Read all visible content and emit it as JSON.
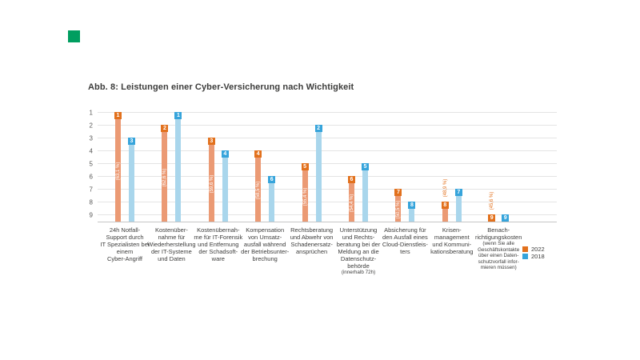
{
  "figure": {
    "background": "#ffffff",
    "logo_color": "#009E60"
  },
  "chart_data": {
    "type": "bar",
    "title": "Abb. 8: Leistungen einer Cyber-Versicherung nach Wichtigkeit",
    "xlabel": "",
    "ylabel": "",
    "y_ticks": [
      1,
      2,
      3,
      4,
      5,
      6,
      7,
      8,
      9
    ],
    "y_axis": {
      "min": 1,
      "max": 9,
      "inverted": true
    },
    "grid": true,
    "legend": {
      "position": "bottom-right",
      "items": [
        {
          "label": "2022",
          "color": "#E2711D"
        },
        {
          "label": "2018",
          "color": "#36A4DB"
        }
      ]
    },
    "categories": [
      {
        "label_lines": "24h Notfall-\nSupport durch\nIT Spezialisten bei\neinem\nCyber-Angriff",
        "note_lines": ""
      },
      {
        "label_lines": "Kostenüber-\nnahme für\nWiederherstellung\nder IT-Systeme\nund Daten",
        "note_lines": ""
      },
      {
        "label_lines": "Kostenübernah-\nme für IT-Forensik\nund Entfernung\nder Schadsoft-\nware",
        "note_lines": ""
      },
      {
        "label_lines": "Kompensation\nvon Umsatz-\nausfall während\nder Betriebsunter-\nbrechung",
        "note_lines": ""
      },
      {
        "label_lines": "Rechtsberatung\nund Abwehr von\nSchadenersatz-\nansprüchen",
        "note_lines": ""
      },
      {
        "label_lines": "Unterstützung\nund Rechts-\nberatung bei der\nMeldung an die\nDatenschutz-\nbehörde",
        "note_lines": "(innerhalb 72h)"
      },
      {
        "label_lines": "Absicherung für\nden Ausfall eines\nCloud-Dienstleis-\nters",
        "note_lines": ""
      },
      {
        "label_lines": "Krisen-\nmanagement\nund Kommuni-\nkationsberatung",
        "note_lines": ""
      },
      {
        "label_lines": "Benach-\nrichtigungskosten",
        "note_lines": "(wenn Sie alle\nGeschäftskontakte\nüber einen Daten-\nschutzvorfall infor-\nmieren müssen)"
      }
    ],
    "series": [
      {
        "name": "2022",
        "bar_color": "#EB9A74",
        "badge_color": "#E2711D",
        "ranks": [
          1,
          2,
          3,
          4,
          5,
          6,
          7,
          8,
          9
        ],
        "percent_labels": [
          "(63,1 %)",
          "(62,6 %)",
          "(59,6 %)",
          "(58,5 %)",
          "(55,4 %)",
          "(54,4 %)",
          "(50,5 %)",
          "(48,9 %)",
          "(45,6 %)"
        ]
      },
      {
        "name": "2018",
        "bar_color": "#A9D6EC",
        "badge_color": "#36A4DB",
        "ranks": [
          3,
          1,
          4,
          6,
          2,
          5,
          8,
          7,
          9
        ],
        "percent_labels": []
      }
    ]
  }
}
